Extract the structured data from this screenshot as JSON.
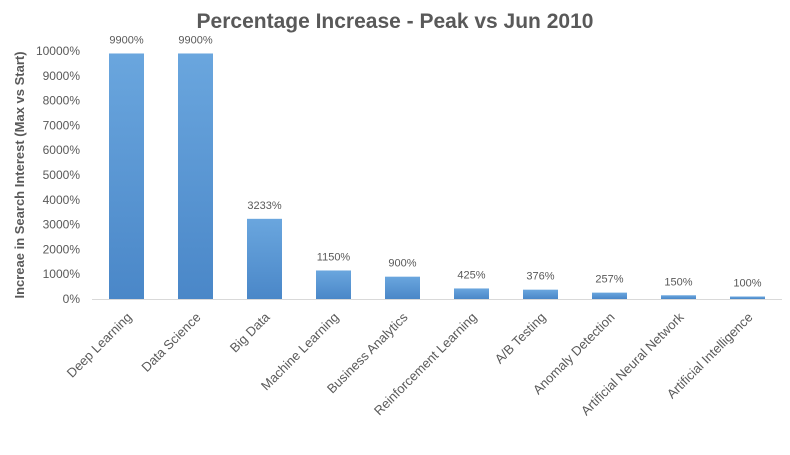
{
  "chart_data": {
    "type": "bar",
    "title": "Percentage Increase - Peak vs Jun 2010",
    "xlabel": "",
    "ylabel": "Increae in Search Interest (Max vs Start)",
    "categories": [
      "Deep Learning",
      "Data Science",
      "Big Data",
      "Machine Learning",
      "Business Analytics",
      "Reinforcement Learning",
      "A/B Testing",
      "Anomaly Detection",
      "Artificial Neural Network",
      "Artificial Intelligence"
    ],
    "values": [
      9900,
      9900,
      3233,
      1150,
      900,
      425,
      376,
      257,
      150,
      100
    ],
    "value_labels": [
      "9900%",
      "9900%",
      "3233%",
      "1150%",
      "900%",
      "425%",
      "376%",
      "257%",
      "150%",
      "100%"
    ],
    "yticks": [
      0,
      1000,
      2000,
      3000,
      4000,
      5000,
      6000,
      7000,
      8000,
      9000,
      10000
    ],
    "ytick_labels": [
      "0%",
      "1000%",
      "2000%",
      "3000%",
      "4000%",
      "5000%",
      "6000%",
      "7000%",
      "8000%",
      "9000%",
      "10000%"
    ],
    "ylim": [
      0,
      10000
    ],
    "grid": false,
    "legend": "none",
    "colors": {
      "bar_top": "#6AA6DE",
      "bar_bottom": "#4A87C8",
      "axis": "#D9D9D9",
      "text": "#595959",
      "title": "#595959"
    }
  }
}
